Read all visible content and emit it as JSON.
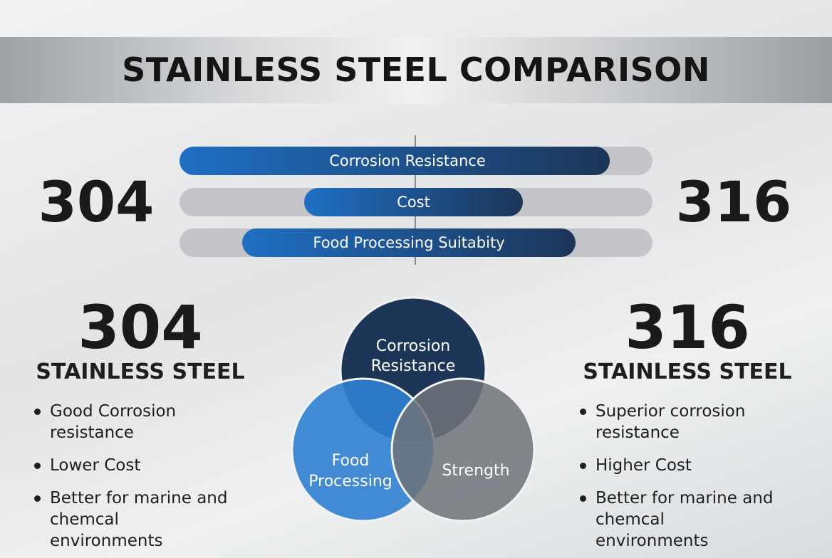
{
  "header": {
    "title": "STAINLESS STEEL COMPARISON"
  },
  "comparison": {
    "left_label": "304",
    "right_label": "316",
    "bars": [
      {
        "label": "Corrosion Resistance"
      },
      {
        "label": "Cost"
      },
      {
        "label": "Food Processing Suitabity"
      }
    ]
  },
  "left_panel": {
    "grade": "304",
    "subtitle": "STAINLESS STEEL",
    "bullets": [
      "Good Corrosion resistance",
      "Lower Cost",
      "Better for marine and chemcal environments"
    ]
  },
  "right_panel": {
    "grade": "316",
    "subtitle": "STAINLESS STEEL",
    "bullets": [
      "Superior corrosion resistance",
      "Higher Cost",
      "Better for marine and chemcal environments"
    ]
  },
  "venn": {
    "top": [
      "Corrosion",
      "Resistance"
    ],
    "left": [
      "Food",
      "Processing"
    ],
    "right": [
      "Strength"
    ]
  }
}
